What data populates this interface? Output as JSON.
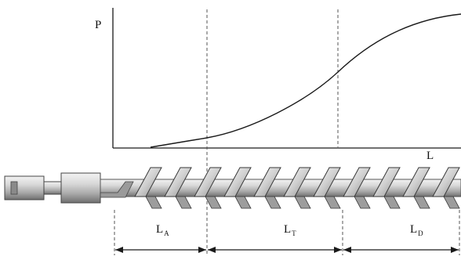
{
  "axes": {
    "y_label": "P",
    "x_label": "L"
  },
  "zones": [
    {
      "letter": "L",
      "sub": "A"
    },
    {
      "letter": "L",
      "sub": "T"
    },
    {
      "letter": "L",
      "sub": "D"
    }
  ],
  "colors": {
    "line": "#1a1a1a",
    "screw_light": "#e6e6e6",
    "screw_mid": "#bdbdbd",
    "screw_dark": "#7a7a7a",
    "outline": "#333333"
  }
}
